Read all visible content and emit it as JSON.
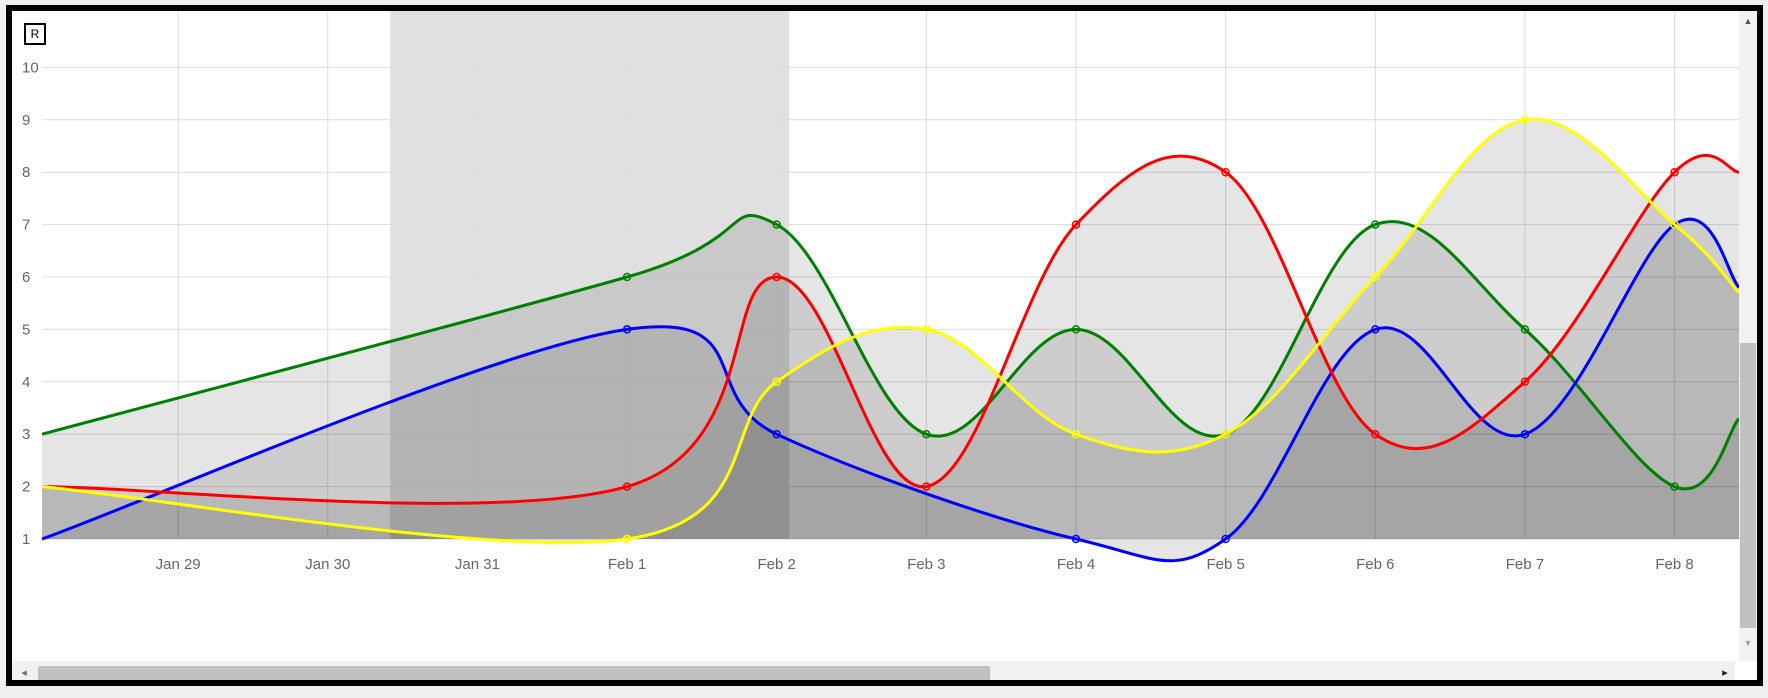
{
  "window": {
    "reset_button_label": "R"
  },
  "scrollbars": {
    "left_arrow": "◂",
    "right_arrow": "▸",
    "up_arrow": "▲",
    "down_arrow": "▼"
  },
  "chart_data": {
    "type": "line",
    "smooth": true,
    "grid": true,
    "legend": "none",
    "title": "",
    "xlabel": "",
    "ylabel": "",
    "x_ticks": [
      "Jan 29",
      "Jan 30",
      "Jan 31",
      "Feb 1",
      "Feb 2",
      "Feb 3",
      "Feb 4",
      "Feb 5",
      "Feb 6",
      "Feb 7",
      "Feb 8"
    ],
    "y_ticks": [
      1,
      2,
      3,
      4,
      5,
      6,
      7,
      8,
      9,
      10
    ],
    "ylim": [
      1,
      11
    ],
    "xlim": [
      "2024-01-28 02:10",
      "2024-02-08 10:20"
    ],
    "highlight_band": {
      "from": "2024-01-30 10:00",
      "to": "2024-02-02 02:00",
      "color": "#e0e0e0"
    },
    "series": [
      {
        "color": "#008000",
        "points": [
          [
            "2024-01-28 02:10",
            3
          ],
          [
            "2024-02-01 00:00",
            6
          ],
          [
            "2024-02-02 00:00",
            7
          ],
          [
            "2024-02-03 00:00",
            3
          ],
          [
            "2024-02-04 00:00",
            5
          ],
          [
            "2024-02-05 00:00",
            3
          ],
          [
            "2024-02-06 00:00",
            7
          ],
          [
            "2024-02-07 00:00",
            5
          ],
          [
            "2024-02-08 00:00",
            2
          ],
          [
            "2024-02-08 10:20",
            3.3
          ]
        ]
      },
      {
        "color": "#0000ff",
        "points": [
          [
            "2024-01-28 02:10",
            1
          ],
          [
            "2024-02-01 00:00",
            5
          ],
          [
            "2024-02-02 00:00",
            3
          ],
          [
            "2024-02-04 00:00",
            1
          ],
          [
            "2024-02-05 00:00",
            1
          ],
          [
            "2024-02-06 00:00",
            5
          ],
          [
            "2024-02-07 00:00",
            3
          ],
          [
            "2024-02-08 00:00",
            7
          ],
          [
            "2024-02-08 10:20",
            5.8
          ]
        ]
      },
      {
        "color": "#ff0000",
        "points": [
          [
            "2024-01-28 02:10",
            2
          ],
          [
            "2024-02-01 00:00",
            2
          ],
          [
            "2024-02-02 00:00",
            6
          ],
          [
            "2024-02-03 00:00",
            2
          ],
          [
            "2024-02-04 00:00",
            7
          ],
          [
            "2024-02-05 00:00",
            8
          ],
          [
            "2024-02-06 00:00",
            3
          ],
          [
            "2024-02-07 00:00",
            4
          ],
          [
            "2024-02-08 00:00",
            8
          ],
          [
            "2024-02-08 10:20",
            8
          ]
        ]
      },
      {
        "color": "#ffff00",
        "points": [
          [
            "2024-01-28 02:10",
            2
          ],
          [
            "2024-02-01 00:00",
            1
          ],
          [
            "2024-02-02 00:00",
            4
          ],
          [
            "2024-02-03 00:00",
            5
          ],
          [
            "2024-02-04 00:00",
            3
          ],
          [
            "2024-02-05 00:00",
            3
          ],
          [
            "2024-02-06 00:00",
            6
          ],
          [
            "2024-02-07 00:00",
            9
          ],
          [
            "2024-02-08 00:00",
            7
          ],
          [
            "2024-02-08 10:20",
            5.7
          ]
        ]
      }
    ]
  }
}
